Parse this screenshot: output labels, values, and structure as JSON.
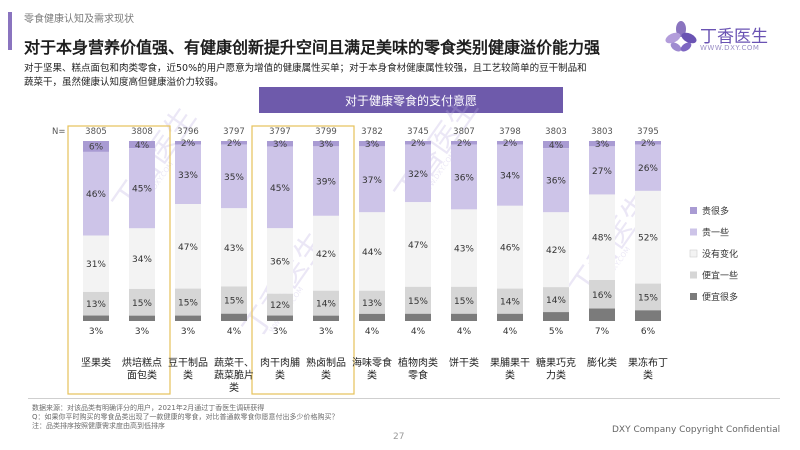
{
  "header": {
    "section": "零食健康认知及需求现状",
    "title": "对于本身营养价值强、有健康创新提升空间且满足美味的零食类别健康溢价能力强",
    "intro": "对于坚果、糕点面包和肉类零食，近50%的用户愿意为增值的健康属性买单；对于本身食材健康属性较强，且工艺较简单的豆干制品和蔬菜干，虽然健康认知度高但健康溢价力较弱。"
  },
  "logo": {
    "name": "丁香医生",
    "url": "WWW.DXY.COM",
    "icon": "clove-flower-icon"
  },
  "watermark": {
    "text": "丁香医生",
    "url": "WWW.DXY.COM"
  },
  "chart_data": {
    "type": "bar",
    "subtype": "stacked-100-percent",
    "title": "对于健康零食的支付意愿",
    "n_label": "N=",
    "categories": [
      "坚果类",
      "烘培糕点面包类",
      "豆干制品类",
      "蔬菜干、蔬菜脆片类",
      "肉干肉脯类",
      "熟卤制品类",
      "海味零食类",
      "植物肉类零食",
      "饼干类",
      "果脯果干类",
      "糖果巧克力类",
      "膨化类",
      "果冻布丁类"
    ],
    "category_lines": [
      [
        "坚果类"
      ],
      [
        "烘培糕点",
        "面包类"
      ],
      [
        "豆干制品",
        "类"
      ],
      [
        "蔬菜干、",
        "蔬菜脆片",
        "类"
      ],
      [
        "肉干肉脯",
        "类"
      ],
      [
        "熟卤制品",
        "类"
      ],
      [
        "海味零食",
        "类"
      ],
      [
        "植物肉类",
        "零食"
      ],
      [
        "饼干类"
      ],
      [
        "果脯果干",
        "类"
      ],
      [
        "糖果巧克",
        "力类"
      ],
      [
        "膨化类"
      ],
      [
        "果冻布丁",
        "类"
      ]
    ],
    "n": [
      3805,
      3808,
      3796,
      3797,
      3797,
      3799,
      3782,
      3745,
      3807,
      3798,
      3803,
      3803,
      3795
    ],
    "series": [
      {
        "name": "贵很多",
        "color": "#a99bd3",
        "values": [
          6,
          4,
          2,
          2,
          3,
          3,
          3,
          2,
          2,
          2,
          4,
          3,
          2
        ]
      },
      {
        "name": "贵一些",
        "color": "#cdc4e8",
        "values": [
          46,
          45,
          33,
          35,
          45,
          39,
          37,
          32,
          36,
          34,
          36,
          27,
          26
        ]
      },
      {
        "name": "没有变化",
        "color": "#f3f3f3",
        "values": [
          31,
          34,
          47,
          43,
          36,
          42,
          44,
          47,
          43,
          46,
          42,
          48,
          52
        ]
      },
      {
        "name": "便宜一些",
        "color": "#d6d6d6",
        "values": [
          13,
          15,
          15,
          15,
          12,
          14,
          13,
          15,
          15,
          14,
          14,
          16,
          15
        ]
      },
      {
        "name": "便宜很多",
        "color": "#7b7b7b",
        "values": [
          3,
          3,
          3,
          4,
          3,
          3,
          4,
          4,
          4,
          4,
          5,
          7,
          6
        ]
      }
    ],
    "highlight_groups": [
      [
        0,
        1
      ],
      [
        4,
        5
      ]
    ],
    "highlight_color": "#e7c25a",
    "ylim": [
      0,
      100
    ],
    "legend_position": "right"
  },
  "footer": {
    "note1": "数据来源：对该品类有明确评分的用户，2021年2月通过丁香医生调研获得",
    "note2": "Q：如果你平时购买的零食品类出现了一款健康的零食，对比普通款零食你愿意付出多少价格购买？",
    "note3": "注：品类排序按照健康需求度由高到低排序",
    "page": "27",
    "copyright": "DXY Company Copyright Confidential"
  }
}
